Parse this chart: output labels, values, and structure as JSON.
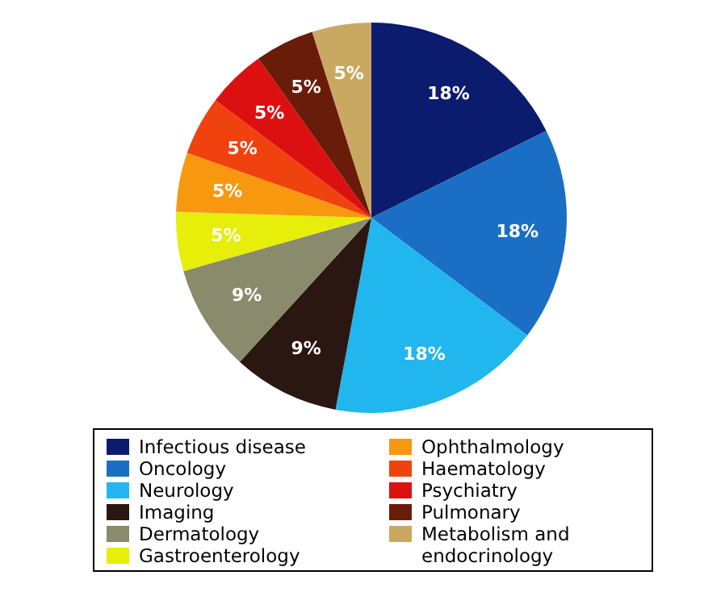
{
  "chart_data": {
    "type": "pie",
    "categories": [
      "Infectious disease",
      "Oncology",
      "Neurology",
      "Imaging",
      "Dermatology",
      "Gastroenterology",
      "Ophthalmology",
      "Haematology",
      "Psychiatry",
      "Pulmonary",
      "Metabolism and endocrinology"
    ],
    "values": [
      18,
      18,
      18,
      9,
      9,
      5,
      5,
      5,
      5,
      5,
      5
    ],
    "colors": [
      "#0b1b6e",
      "#1a6fc4",
      "#22b6ee",
      "#2a1712",
      "#8a8a6c",
      "#e6ee0a",
      "#f7980f",
      "#f0420e",
      "#dc1010",
      "#6a1c0a",
      "#c9a862"
    ],
    "value_labels": [
      "18%",
      "18%",
      "18%",
      "9%",
      "9%",
      "5%",
      "5%",
      "5%",
      "5%",
      "5%",
      "5%"
    ],
    "legend": "bottom"
  }
}
